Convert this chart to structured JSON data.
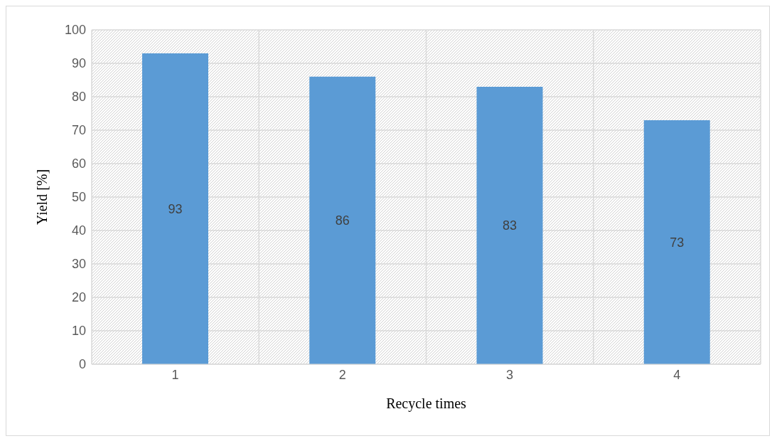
{
  "chart_data": {
    "type": "bar",
    "xlabel": "Recycle times",
    "ylabel": "Yield [%]",
    "categories": [
      "1",
      "2",
      "3",
      "4"
    ],
    "values": [
      93,
      86,
      83,
      73
    ],
    "color": "#5b9bd5",
    "ylim": [
      0,
      100
    ],
    "yticks": [
      0,
      10,
      20,
      30,
      40,
      50,
      60,
      70,
      80,
      90,
      100
    ],
    "grid": true,
    "data_labels": true
  }
}
